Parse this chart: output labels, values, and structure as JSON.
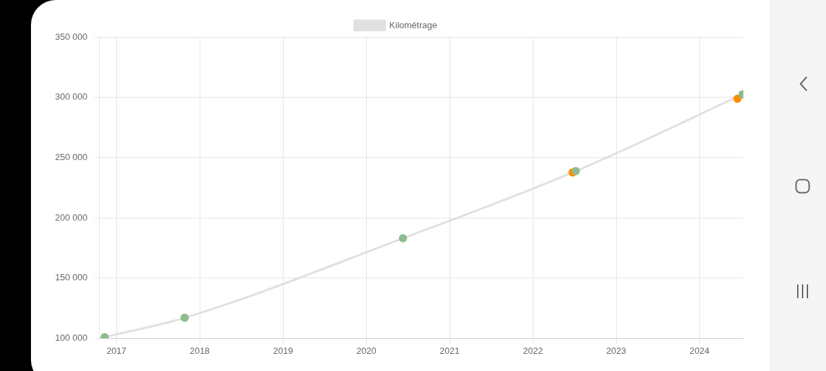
{
  "chart_data": {
    "type": "line",
    "x": [
      "2016-11-10",
      "2017-10-27",
      "2020-06-10",
      "2022-07-08",
      "2024-07-08"
    ],
    "series": [
      {
        "name": "Kilométrage",
        "color": "#e0e0e0",
        "marker": "none",
        "values": [
          101000,
          117000,
          183000,
          238800,
          302400
        ]
      },
      {
        "type": "scatter",
        "color": "#8fbc8f",
        "marker": "circle",
        "values": [
          101000,
          117000,
          183000,
          238800,
          302400
        ]
      },
      {
        "type": "scatter",
        "color": "#ff8c00",
        "marker": "circle",
        "x": [
          "2022-06-24",
          "2024-06-16"
        ],
        "values": [
          237600,
          298800
        ]
      }
    ],
    "xlim": [
      "2016-10-20",
      "2024-07-12"
    ],
    "xticks": [
      {
        "value": "2017-01-01",
        "label": "2017"
      },
      {
        "value": "2018-01-01",
        "label": "2018"
      },
      {
        "value": "2019-01-01",
        "label": "2019"
      },
      {
        "value": "2020-01-01",
        "label": "2020"
      },
      {
        "value": "2021-01-01",
        "label": "2021"
      },
      {
        "value": "2022-01-01",
        "label": "2022"
      },
      {
        "value": "2023-01-01",
        "label": "2023"
      },
      {
        "value": "2024-01-01",
        "label": "2024"
      }
    ],
    "ylim": [
      100000,
      350000
    ],
    "yticks": [
      {
        "value": 100000,
        "label": "100 000"
      },
      {
        "value": 150000,
        "label": "150 000"
      },
      {
        "value": 200000,
        "label": "200 000"
      },
      {
        "value": 250000,
        "label": "250 000"
      },
      {
        "value": 300000,
        "label": "300 000"
      },
      {
        "value": 350000,
        "label": "350 000"
      }
    ],
    "grid": true,
    "legend": "top"
  }
}
